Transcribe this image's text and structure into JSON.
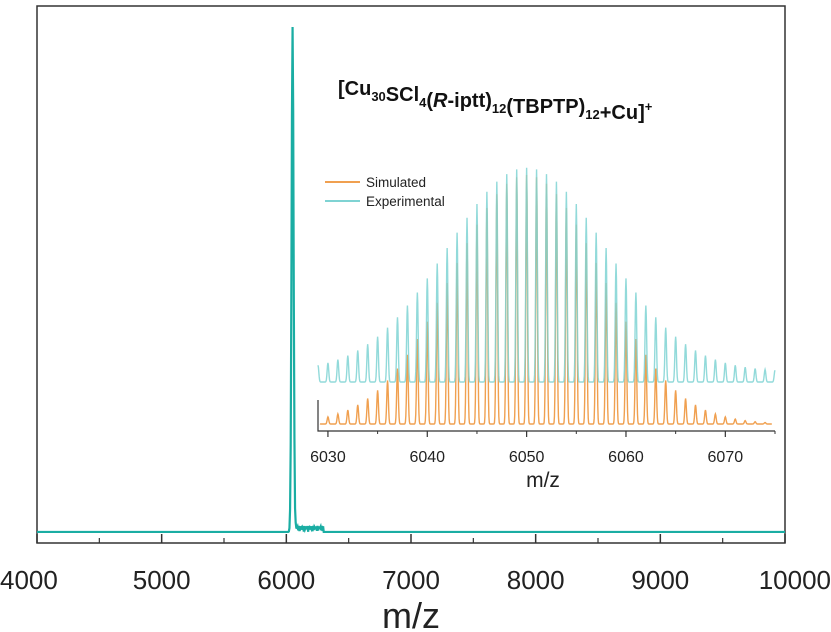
{
  "chart_data": [
    {
      "type": "line",
      "title": "",
      "xlabel": "m/z",
      "ylabel": "",
      "xlim": [
        4000,
        10000
      ],
      "xticks": [
        4000,
        5000,
        6000,
        7000,
        8000,
        9000,
        10000
      ],
      "tick_labels": [
        "4000",
        "5000",
        "6000",
        "7000",
        "8000",
        "9000",
        "10000"
      ],
      "grid": false,
      "series": [
        {
          "color": "#1aada3",
          "baseline": 0.01,
          "peaks": [
            {
              "x": 6050,
              "y": 1.0
            }
          ]
        }
      ]
    },
    {
      "type": "line",
      "title": "",
      "xlabel": "m/z",
      "xlim": [
        6029,
        6075
      ],
      "xticks": [
        6030,
        6040,
        6050,
        6060,
        6070
      ],
      "tick_labels": [
        "6030",
        "6040",
        "6050",
        "6060",
        "6070"
      ],
      "grid": false,
      "legend_position": "top-left",
      "series": [
        {
          "name": "Simulated",
          "color": "#f0a050",
          "center": 6050,
          "sigma": 7.5,
          "offset": 0.0,
          "peak_height": 1.0
        },
        {
          "name": "Experimental",
          "color": "#7fd3d3",
          "center": 6050,
          "sigma": 8.0,
          "offset": 0.22,
          "peak_height": 0.78
        }
      ]
    }
  ],
  "annotation": {
    "formula_parts": [
      {
        "t": "[Cu",
        "s": "n"
      },
      {
        "t": "30",
        "s": "sub"
      },
      {
        "t": "SCl",
        "s": "n"
      },
      {
        "t": "4",
        "s": "sub"
      },
      {
        "t": "(",
        "s": "n"
      },
      {
        "t": "R",
        "s": "i"
      },
      {
        "t": "-iptt)",
        "s": "n"
      },
      {
        "t": "12",
        "s": "sub"
      },
      {
        "t": "(TBPTP)",
        "s": "n"
      },
      {
        "t": "12",
        "s": "sub"
      },
      {
        "t": "+Cu]",
        "s": "n"
      },
      {
        "t": "+",
        "s": "sup"
      }
    ]
  }
}
